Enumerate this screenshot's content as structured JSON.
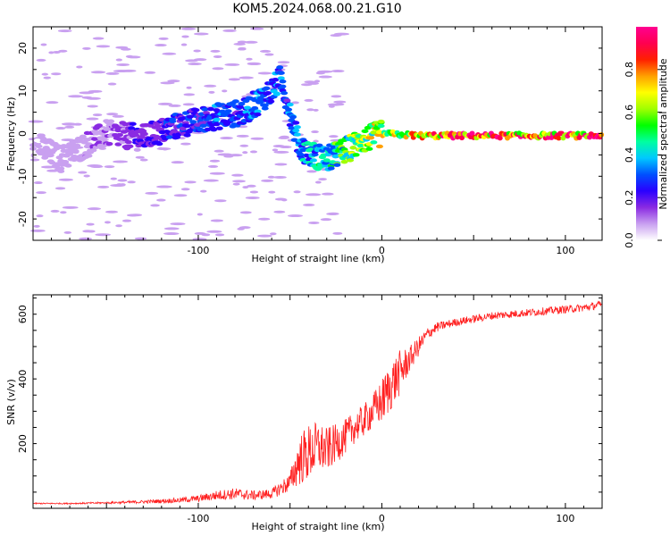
{
  "title": "KOM5.2024.068.00.21.G10",
  "chart_data": [
    {
      "type": "heatmap",
      "xlabel": "Height of straight line (km)",
      "ylabel": "Frequency (Hz)",
      "xlim": [
        -190,
        120
      ],
      "ylim": [
        -25,
        25
      ],
      "x_ticks": [
        -100,
        0,
        100
      ],
      "y_ticks": [
        -20,
        -10,
        0,
        10,
        20
      ],
      "colorbar": {
        "label": "Normalized spectral amplitude",
        "range": [
          0,
          1
        ],
        "ticks": [
          "0.0",
          "0.2",
          "0.4",
          "0.6",
          "0.8"
        ],
        "colors": [
          "#ffffff",
          "#c9a0f0",
          "#8a2be2",
          "#2a00ff",
          "#0050ff",
          "#00c8ff",
          "#00ffa0",
          "#00ff00",
          "#a0ff00",
          "#ffff00",
          "#ffa000",
          "#ff2000",
          "#ff0050",
          "#ff0090"
        ]
      },
      "ridge": [
        {
          "x": -190,
          "y": -2,
          "a": 0.05
        },
        {
          "x": -175,
          "y": -6,
          "a": 0.08
        },
        {
          "x": -150,
          "y": 0,
          "a": 0.12
        },
        {
          "x": -130,
          "y": -1,
          "a": 0.2
        },
        {
          "x": -110,
          "y": 2,
          "a": 0.25
        },
        {
          "x": -90,
          "y": 4,
          "a": 0.3
        },
        {
          "x": -75,
          "y": 5,
          "a": 0.3
        },
        {
          "x": -60,
          "y": 10,
          "a": 0.35
        },
        {
          "x": -55,
          "y": 13,
          "a": 0.3
        },
        {
          "x": -50,
          "y": 5,
          "a": 0.3
        },
        {
          "x": -45,
          "y": -3,
          "a": 0.35
        },
        {
          "x": -38,
          "y": -5,
          "a": 0.4
        },
        {
          "x": -30,
          "y": -6,
          "a": 0.45
        },
        {
          "x": -20,
          "y": -4,
          "a": 0.55
        },
        {
          "x": -10,
          "y": -1.5,
          "a": 0.6
        },
        {
          "x": 0,
          "y": 0,
          "a": 0.7
        },
        {
          "x": 20,
          "y": -0.5,
          "a": 0.75
        },
        {
          "x": 50,
          "y": -0.5,
          "a": 0.92
        },
        {
          "x": 80,
          "y": -0.5,
          "a": 0.85
        },
        {
          "x": 120,
          "y": -0.5,
          "a": 0.85
        }
      ]
    },
    {
      "type": "line",
      "xlabel": "Height of straight line (km)",
      "ylabel": "SNR (v/v)",
      "xlim": [
        -190,
        120
      ],
      "ylim": [
        0,
        660
      ],
      "x_ticks": [
        -100,
        0,
        100
      ],
      "y_ticks": [
        200,
        400,
        600
      ],
      "series": [
        {
          "color": "#ff2020",
          "x": [
            -190,
            -170,
            -150,
            -130,
            -110,
            -100,
            -90,
            -80,
            -70,
            -60,
            -50,
            -45,
            -40,
            -35,
            -30,
            -25,
            -20,
            -15,
            -10,
            -5,
            0,
            5,
            10,
            15,
            20,
            25,
            30,
            40,
            50,
            60,
            70,
            80,
            90,
            100,
            110,
            120
          ],
          "y": [
            15,
            15,
            17,
            20,
            25,
            30,
            40,
            45,
            40,
            45,
            80,
            150,
            170,
            190,
            180,
            200,
            220,
            250,
            270,
            300,
            330,
            380,
            420,
            460,
            500,
            540,
            560,
            575,
            585,
            595,
            600,
            605,
            610,
            615,
            620,
            630
          ],
          "noise": [
            2,
            2,
            3,
            5,
            8,
            10,
            15,
            18,
            15,
            15,
            30,
            80,
            90,
            80,
            70,
            60,
            55,
            50,
            50,
            55,
            70,
            80,
            70,
            40,
            30,
            20,
            15,
            12,
            12,
            12,
            12,
            12,
            12,
            12,
            12,
            12
          ]
        }
      ]
    }
  ]
}
